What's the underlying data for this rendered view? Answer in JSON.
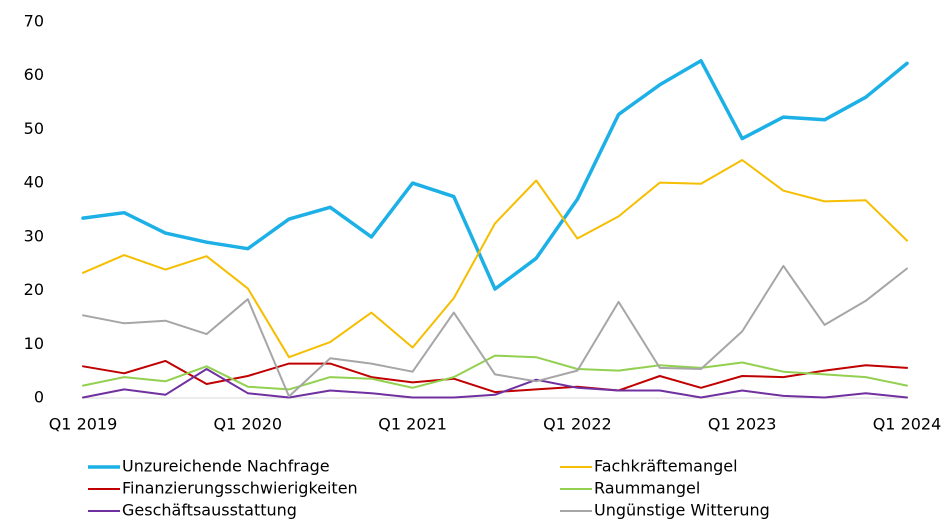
{
  "chart_data": {
    "type": "line",
    "categories": [
      "Q1 2019",
      null,
      null,
      null,
      "Q1 2020",
      null,
      null,
      null,
      "Q1 2021",
      null,
      null,
      null,
      "Q1 2022",
      null,
      null,
      null,
      "Q1 2023",
      null,
      null,
      null,
      "Q1 2024"
    ],
    "ylim": [
      0,
      70
    ],
    "yticks": [
      0,
      10,
      20,
      30,
      40,
      50,
      60,
      70
    ],
    "grid": false,
    "series": [
      {
        "name": "Unzureichende Nachfrage",
        "color": "#1cb0e6",
        "values": [
          33.5,
          34.5,
          30.7,
          29,
          27.8,
          33.3,
          35.5,
          30,
          40,
          37.5,
          20.3,
          26,
          37,
          52.8,
          58.3,
          62.8,
          48.3,
          52.3,
          51.8,
          56,
          62.3
        ]
      },
      {
        "name": "Fachkräftemangel",
        "color": "#f6be00",
        "values": [
          23.3,
          26.6,
          23.9,
          26.4,
          20.4,
          7.6,
          10.4,
          15.9,
          9.4,
          18.6,
          32.5,
          40.5,
          29.7,
          33.8,
          40.1,
          39.9,
          44.3,
          38.6,
          36.6,
          36.8,
          29.3
        ]
      },
      {
        "name": "Finanzierungsschwierigkeiten",
        "color": "#c00000",
        "values": [
          5.9,
          4.6,
          6.9,
          2.6,
          4.1,
          6.4,
          6.4,
          3.9,
          2.9,
          3.6,
          1.1,
          1.6,
          2.1,
          1.4,
          4.1,
          1.9,
          4.1,
          3.9,
          5.1,
          6.1,
          5.6
        ]
      },
      {
        "name": "Raummangel",
        "color": "#92d050",
        "values": [
          2.3,
          3.9,
          3.1,
          5.9,
          2.1,
          1.6,
          3.9,
          3.6,
          1.9,
          3.9,
          7.9,
          7.6,
          5.4,
          5.1,
          6.1,
          5.6,
          6.6,
          4.9,
          4.4,
          3.9,
          2.3
        ]
      },
      {
        "name": "Geschäftsausstattung",
        "color": "#7030a0",
        "values": [
          0.1,
          1.6,
          0.6,
          5.4,
          0.9,
          0.1,
          1.4,
          0.9,
          0.1,
          0.1,
          0.6,
          3.4,
          1.9,
          1.4,
          1.4,
          0.1,
          1.4,
          0.4,
          0.1,
          0.9,
          0.1
        ]
      },
      {
        "name": "Ungünstige Witterung",
        "color": "#a6a6a6",
        "values": [
          15.4,
          13.9,
          14.4,
          11.9,
          18.4,
          0.3,
          7.4,
          6.4,
          4.9,
          15.9,
          4.4,
          3.1,
          5.1,
          17.9,
          5.6,
          5.4,
          12.4,
          24.6,
          13.6,
          18.1,
          24.1
        ]
      }
    ]
  }
}
